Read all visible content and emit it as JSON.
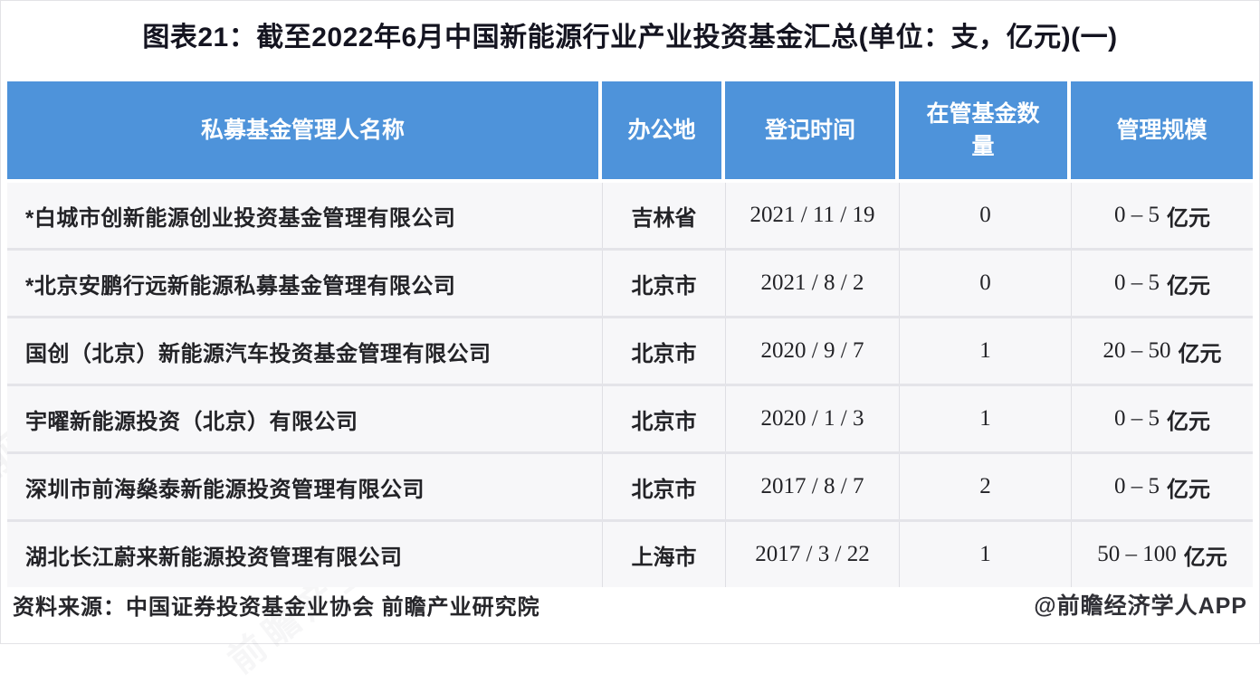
{
  "title": "图表21：截至2022年6月中国新能源行业产业投资基金汇总(单位：支，亿元)(一)",
  "chart_data": {
    "type": "table",
    "title": "图表21：截至2022年6月中国新能源行业产业投资基金汇总(单位：支，亿元)(一)",
    "columns": [
      "私募基金管理人名称",
      "办公地",
      "登记时间",
      "在管基金数量",
      "管理规模"
    ],
    "rows": [
      {
        "name": "*白城市创新能源创业投资基金管理有限公司",
        "office": "吉林省",
        "reg_date": "2021 / 11 / 19",
        "fund_count": "0",
        "scale": "0 – 5",
        "scale_unit": "亿元"
      },
      {
        "name": "*北京安鹏行远新能源私募基金管理有限公司",
        "office": "北京市",
        "reg_date": "2021 / 8 / 2",
        "fund_count": "0",
        "scale": "0 – 5",
        "scale_unit": "亿元"
      },
      {
        "name": "国创（北京）新能源汽车投资基金管理有限公司",
        "office": "北京市",
        "reg_date": "2020 / 9 / 7",
        "fund_count": "1",
        "scale": "20 – 50",
        "scale_unit": "亿元"
      },
      {
        "name": "宇曜新能源投资（北京）有限公司",
        "office": "北京市",
        "reg_date": "2020 / 1 / 3",
        "fund_count": "1",
        "scale": "0 – 5",
        "scale_unit": "亿元"
      },
      {
        "name": "深圳市前海燊泰新能源投资管理有限公司",
        "office": "北京市",
        "reg_date": "2017 / 8 / 7",
        "fund_count": "2",
        "scale": "0 – 5",
        "scale_unit": "亿元"
      },
      {
        "name": "湖北长江蔚来新能源投资管理有限公司",
        "office": "上海市",
        "reg_date": "2017 / 3 / 22",
        "fund_count": "1",
        "scale": "50 – 100",
        "scale_unit": "亿元"
      }
    ]
  },
  "footer": {
    "source": "资料来源：中国证券投资基金业协会 前瞻产业研究院",
    "credit": "@前瞻经济学人APP"
  },
  "watermark": {
    "text": "前瞻产业研究院"
  },
  "colors": {
    "header_bg": "#4e93da",
    "header_text": "#ffffff",
    "title_text": "#141420",
    "row_bg": "#f7f7f9",
    "body_text": "#232327"
  }
}
